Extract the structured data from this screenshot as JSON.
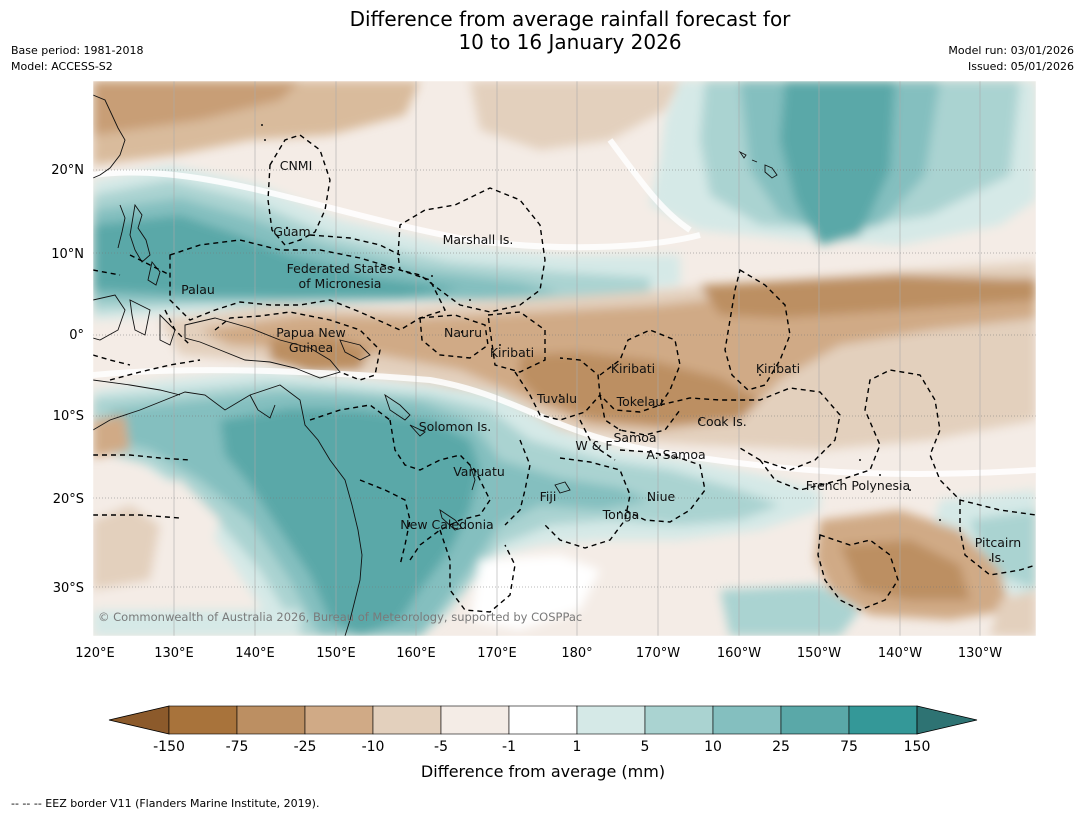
{
  "title": {
    "line1": "Difference from average rainfall forecast for",
    "line2": "10 to 16 January 2026"
  },
  "meta": {
    "base_period": "Base period: 1981-2018",
    "model": "Model: ACCESS-S2",
    "model_run": "Model run: 03/01/2026",
    "issued": "Issued: 05/01/2026"
  },
  "map": {
    "latitude_labels": [
      "20°N",
      "10°N",
      "0°",
      "10°S",
      "20°S",
      "30°S"
    ],
    "longitude_labels": [
      "120°E",
      "130°E",
      "140°E",
      "150°E",
      "160°E",
      "170°E",
      "180°",
      "170°W",
      "160°W",
      "150°W",
      "140°W",
      "130°W"
    ],
    "regions": [
      "CNMI",
      "Guam",
      "Marshall Is.",
      "Federated States",
      "of Micronesia",
      "Palau",
      "Papua New",
      "Guinea",
      "Nauru",
      "Kiribati",
      "Kiribati",
      "Kiribati",
      "Tuvalu",
      "Tokelau",
      "Cook Is.",
      "Solomon Is.",
      "Samoa",
      "W & F",
      "A. Samoa",
      "Vanuatu",
      "Fiji",
      "Niue",
      "French Polynesia",
      "Tonga",
      "New Caledonia",
      "Pitcairn",
      "Is."
    ],
    "copyright": "© Commonwealth of Australia 2026, Bureau of Meteorology, supported by COSPPac"
  },
  "colorbar": {
    "labels": [
      "-150",
      "-75",
      "-25",
      "-10",
      "-5",
      "-1",
      "1",
      "5",
      "10",
      "25",
      "75",
      "150"
    ],
    "colors": [
      "#8c5a2b",
      "#a8733b",
      "#bc8f62",
      "#d0aa86",
      "#e3d0bd",
      "#f4ece6",
      "#ffffff",
      "#d5e9e7",
      "#aad3d1",
      "#84bfbf",
      "#5aa8a8",
      "#349898",
      "#2e7373"
    ],
    "title": "Difference from average (mm)"
  },
  "footer": "--  --  -- EEZ border V11 (Flanders Marine Institute, 2019)."
}
